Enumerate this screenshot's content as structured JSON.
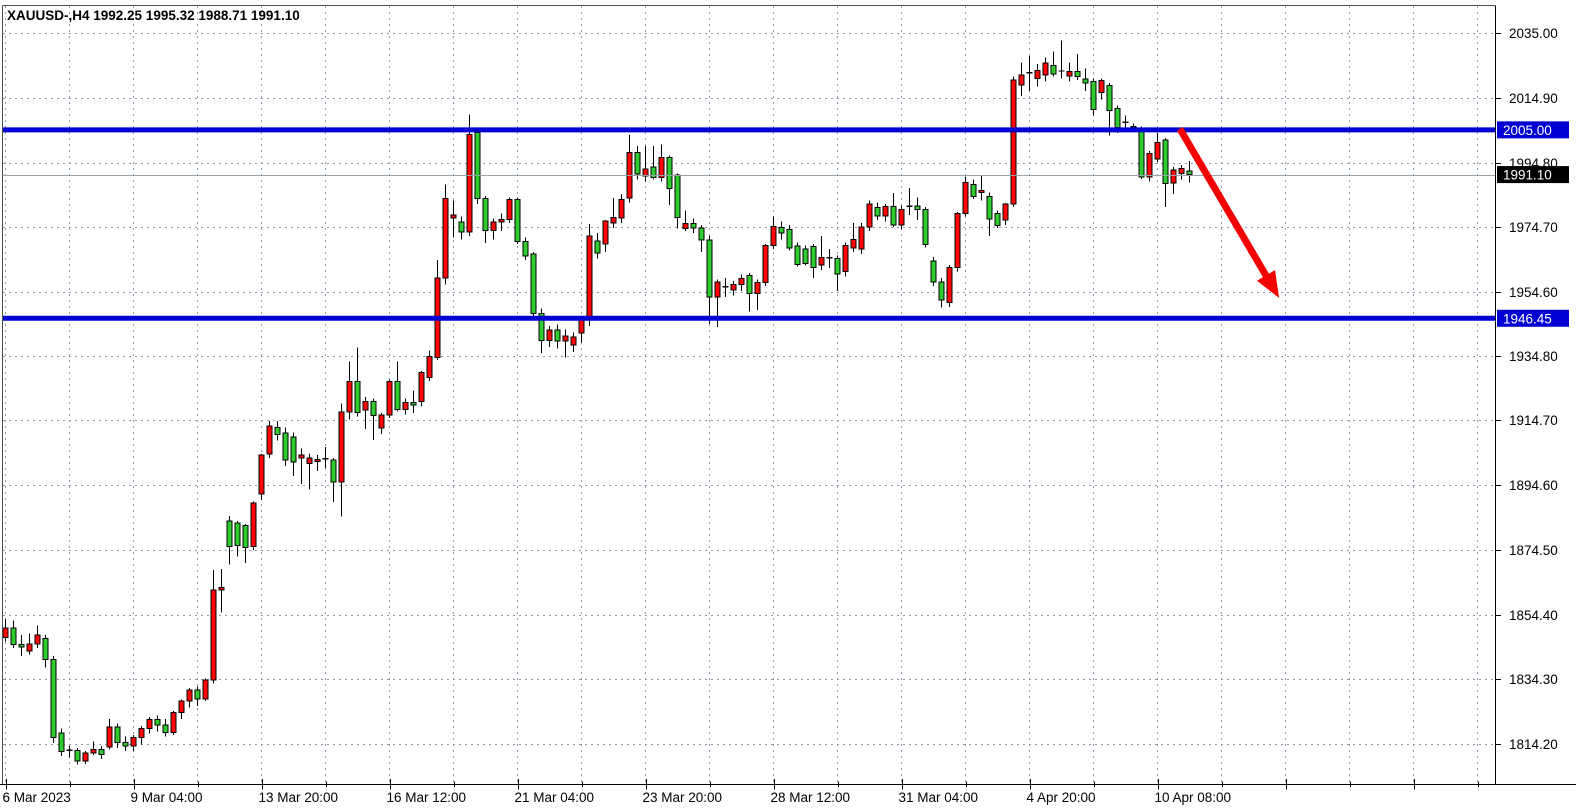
{
  "title": {
    "symbol_period": "XAUUSD-,H4",
    "open": "1992.25",
    "high": "1995.32",
    "low": "1988.71",
    "close": "1991.10"
  },
  "chart_data": {
    "type": "candlestick",
    "symbol": "XAUUSD-",
    "timeframe": "H4",
    "title": "XAUUSD-,H4 1992.25 1995.32 1988.71 1991.10",
    "x_labels": [
      "6 Mar 2023",
      "9 Mar 04:00",
      "13 Mar 20:00",
      "16 Mar 12:00",
      "21 Mar 04:00",
      "23 Mar 20:00",
      "28 Mar 12:00",
      "31 Mar 04:00",
      "4 Apr 20:00",
      "10 Apr 08:00"
    ],
    "y_axis_labels": [
      "2035.00",
      "2014.90",
      "1994.80",
      "1974.70",
      "1954.60",
      "1934.80",
      "1914.70",
      "1894.60",
      "1874.50",
      "1854.40",
      "1834.30",
      "1814.20"
    ],
    "ylim": [
      1805,
      2040
    ],
    "grid": true,
    "legend_position": "none",
    "note_color_scheme": "bullish candles red, bearish candles green",
    "ohlc": [
      [
        1847.3,
        1853.0,
        1846.0,
        1850.2
      ],
      [
        1850.2,
        1852.5,
        1844.0,
        1845.1
      ],
      [
        1845.1,
        1848.0,
        1841.5,
        1844.3
      ],
      [
        1843.0,
        1848.5,
        1842.0,
        1845.2
      ],
      [
        1845.2,
        1851.0,
        1844.0,
        1848.0
      ],
      [
        1847.0,
        1848.0,
        1838.0,
        1840.5
      ],
      [
        1840.5,
        1841.5,
        1814.5,
        1816.2
      ],
      [
        1817.6,
        1819.0,
        1810.5,
        1811.9
      ],
      [
        1811.9,
        1813.5,
        1810.0,
        1812.2
      ],
      [
        1812.2,
        1813.0,
        1807.8,
        1808.9
      ],
      [
        1808.9,
        1812.0,
        1808.0,
        1811.4
      ],
      [
        1811.4,
        1815.0,
        1810.8,
        1812.4
      ],
      [
        1812.4,
        1813.5,
        1809.5,
        1810.9
      ],
      [
        1813.2,
        1822.0,
        1812.5,
        1819.4
      ],
      [
        1819.4,
        1820.5,
        1813.0,
        1814.6
      ],
      [
        1814.6,
        1816.5,
        1812.0,
        1813.5
      ],
      [
        1813.5,
        1817.0,
        1812.0,
        1816.2
      ],
      [
        1816.2,
        1819.8,
        1814.0,
        1819.0
      ],
      [
        1819.0,
        1822.5,
        1817.5,
        1821.8
      ],
      [
        1821.8,
        1823.0,
        1818.0,
        1820.1
      ],
      [
        1820.1,
        1822.0,
        1816.5,
        1817.8
      ],
      [
        1817.8,
        1824.5,
        1817.0,
        1823.9
      ],
      [
        1823.9,
        1828.0,
        1822.0,
        1827.5
      ],
      [
        1827.5,
        1831.5,
        1825.5,
        1830.9
      ],
      [
        1830.9,
        1832.0,
        1826.0,
        1828.1
      ],
      [
        1828.1,
        1834.5,
        1827.5,
        1834.0
      ],
      [
        1834.0,
        1868.2,
        1833.0,
        1862.0
      ],
      [
        1862.0,
        1868.5,
        1855.0,
        1862.8
      ],
      [
        1883.5,
        1885.0,
        1870.0,
        1875.5
      ],
      [
        1882.8,
        1883.5,
        1872.5,
        1875.9
      ],
      [
        1882.0,
        1882.5,
        1870.4,
        1875.2
      ],
      [
        1875.5,
        1889.5,
        1874.5,
        1889.0
      ],
      [
        1891.8,
        1904.3,
        1890.0,
        1904.0
      ],
      [
        1904.3,
        1914.6,
        1903.0,
        1913.0
      ],
      [
        1912.5,
        1914.5,
        1908.5,
        1910.4
      ],
      [
        1910.8,
        1912.5,
        1900.5,
        1902.4
      ],
      [
        1909.5,
        1911.0,
        1897.5,
        1901.8
      ],
      [
        1903.0,
        1906.0,
        1895.0,
        1904.0
      ],
      [
        1901.3,
        1904.5,
        1893.3,
        1903.0
      ],
      [
        1902.0,
        1904.0,
        1899.0,
        1902.5
      ],
      [
        1902.5,
        1906.5,
        1900.0,
        1902.8
      ],
      [
        1902.4,
        1903.0,
        1889.4,
        1895.6
      ],
      [
        1895.6,
        1920.0,
        1884.8,
        1917.4
      ],
      [
        1917.4,
        1933.0,
        1915.0,
        1926.8
      ],
      [
        1926.8,
        1937.3,
        1916.0,
        1917.2
      ],
      [
        1918.0,
        1922.0,
        1912.0,
        1920.6
      ],
      [
        1920.6,
        1921.5,
        1908.7,
        1916.2
      ],
      [
        1912.3,
        1917.0,
        1910.5,
        1916.4
      ],
      [
        1916.4,
        1927.5,
        1915.5,
        1926.8
      ],
      [
        1926.8,
        1933.0,
        1917.5,
        1918.1
      ],
      [
        1918.1,
        1921.5,
        1916.5,
        1920.3
      ],
      [
        1920.3,
        1924.0,
        1917.0,
        1919.5
      ],
      [
        1920.6,
        1930.0,
        1919.0,
        1929.6
      ],
      [
        1928.0,
        1936.5,
        1927.0,
        1934.5
      ],
      [
        1934.3,
        1964.6,
        1933.5,
        1959.0
      ],
      [
        1959.0,
        1988.0,
        1957.0,
        1983.6
      ],
      [
        1977.6,
        1983.0,
        1971.5,
        1978.5
      ],
      [
        1976.3,
        1978.0,
        1971.0,
        1973.2
      ],
      [
        1973.2,
        2009.8,
        1972.0,
        2003.6
      ],
      [
        2004.2,
        2005.8,
        1982.0,
        1983.6
      ],
      [
        1983.6,
        1984.5,
        1969.8,
        1973.7
      ],
      [
        1973.7,
        1977.5,
        1971.0,
        1976.3
      ],
      [
        1976.3,
        1979.0,
        1973.5,
        1977.2
      ],
      [
        1977.2,
        1984.0,
        1976.0,
        1983.4
      ],
      [
        1983.4,
        1984.0,
        1969.5,
        1970.3
      ],
      [
        1970.3,
        1971.5,
        1964.5,
        1965.8
      ],
      [
        1966.4,
        1967.0,
        1947.0,
        1948.0
      ],
      [
        1948.0,
        1949.5,
        1935.6,
        1939.6
      ],
      [
        1939.6,
        1944.0,
        1937.5,
        1942.8
      ],
      [
        1942.8,
        1944.5,
        1937.0,
        1939.4
      ],
      [
        1939.4,
        1943.0,
        1934.3,
        1940.9
      ],
      [
        1938.2,
        1942.0,
        1936.0,
        1940.7
      ],
      [
        1941.8,
        1946.5,
        1939.0,
        1945.9
      ],
      [
        1945.9,
        1975.7,
        1944.0,
        1972.0
      ],
      [
        1970.4,
        1973.0,
        1965.0,
        1966.7
      ],
      [
        1969.5,
        1977.0,
        1967.0,
        1976.6
      ],
      [
        1976.0,
        1983.9,
        1974.5,
        1977.8
      ],
      [
        1977.6,
        1985.0,
        1976.0,
        1983.3
      ],
      [
        1983.9,
        2003.4,
        1982.5,
        1998.0
      ],
      [
        1998.0,
        2000.0,
        1989.5,
        1991.3
      ],
      [
        1990.6,
        2000.0,
        1989.0,
        1992.8
      ],
      [
        1993.4,
        2000.0,
        1989.5,
        1990.2
      ],
      [
        1990.2,
        2000.4,
        1989.0,
        1996.4
      ],
      [
        1996.4,
        1997.0,
        1981.6,
        1986.7
      ],
      [
        1991.0,
        1991.5,
        1974.3,
        1977.8
      ],
      [
        1974.3,
        1980.0,
        1973.5,
        1975.9
      ],
      [
        1975.9,
        1977.5,
        1973.0,
        1974.5
      ],
      [
        1974.5,
        1975.5,
        1967.0,
        1970.8
      ],
      [
        1970.8,
        1972.0,
        1944.7,
        1953.0
      ],
      [
        1953.0,
        1958.5,
        1943.8,
        1957.8
      ],
      [
        1956.0,
        1959.0,
        1953.0,
        1956.2
      ],
      [
        1955.2,
        1958.0,
        1953.5,
        1957.0
      ],
      [
        1957.0,
        1960.0,
        1955.0,
        1958.8
      ],
      [
        1959.8,
        1960.5,
        1948.5,
        1954.2
      ],
      [
        1954.2,
        1958.5,
        1949.0,
        1957.5
      ],
      [
        1957.5,
        1969.5,
        1956.5,
        1969.0
      ],
      [
        1969.0,
        1978.0,
        1968.0,
        1975.0
      ],
      [
        1974.6,
        1976.5,
        1971.0,
        1973.0
      ],
      [
        1974.0,
        1975.5,
        1967.5,
        1968.3
      ],
      [
        1968.9,
        1970.0,
        1962.5,
        1963.2
      ],
      [
        1968.0,
        1969.0,
        1962.8,
        1963.4
      ],
      [
        1968.7,
        1969.5,
        1959.0,
        1962.3
      ],
      [
        1963.0,
        1972.0,
        1961.5,
        1965.3
      ],
      [
        1965.3,
        1968.0,
        1962.0,
        1965.0
      ],
      [
        1965.0,
        1966.0,
        1955.0,
        1960.2
      ],
      [
        1961.0,
        1970.0,
        1959.5,
        1969.0
      ],
      [
        1968.3,
        1976.0,
        1967.0,
        1971.0
      ],
      [
        1968.0,
        1976.0,
        1966.5,
        1974.8
      ],
      [
        1974.8,
        1983.0,
        1973.5,
        1982.0
      ],
      [
        1980.9,
        1982.5,
        1977.0,
        1978.3
      ],
      [
        1978.3,
        1982.0,
        1976.5,
        1981.2
      ],
      [
        1981.2,
        1985.3,
        1974.8,
        1975.5
      ],
      [
        1975.5,
        1981.5,
        1974.0,
        1980.3
      ],
      [
        1980.9,
        1987.0,
        1978.5,
        1981.3
      ],
      [
        1981.3,
        1984.0,
        1977.0,
        1980.2
      ],
      [
        1980.2,
        1981.0,
        1968.5,
        1969.3
      ],
      [
        1964.3,
        1965.5,
        1956.5,
        1957.8
      ],
      [
        1957.8,
        1959.0,
        1949.8,
        1952.2
      ],
      [
        1951.3,
        1963.0,
        1950.0,
        1962.3
      ],
      [
        1962.3,
        1979.5,
        1961.0,
        1979.0
      ],
      [
        1979.0,
        1990.5,
        1978.0,
        1988.7
      ],
      [
        1988.0,
        1989.5,
        1983.5,
        1984.3
      ],
      [
        1985.5,
        1991.0,
        1983.0,
        1986.2
      ],
      [
        1984.3,
        1985.5,
        1972.0,
        1977.3
      ],
      [
        1979.0,
        1980.0,
        1974.5,
        1975.3
      ],
      [
        1977.0,
        1982.3,
        1975.5,
        1982.0
      ],
      [
        1982.0,
        2021.5,
        1981.0,
        2020.5
      ],
      [
        2019.0,
        2026.0,
        2015.5,
        2022.0
      ],
      [
        2022.3,
        2028.0,
        2017.0,
        2022.7
      ],
      [
        2021.0,
        2025.5,
        2018.5,
        2023.5
      ],
      [
        2022.0,
        2027.5,
        2020.0,
        2025.7
      ],
      [
        2025.0,
        2029.3,
        2021.5,
        2022.3
      ],
      [
        2023.0,
        2032.7,
        2021.0,
        2023.3
      ],
      [
        2021.8,
        2026.0,
        2020.0,
        2023.2
      ],
      [
        2023.2,
        2028.5,
        2020.5,
        2021.6
      ],
      [
        2020.8,
        2024.0,
        2017.0,
        2019.5
      ],
      [
        2020.0,
        2021.0,
        2009.5,
        2011.3
      ],
      [
        2016.6,
        2021.0,
        2014.5,
        2020.4
      ],
      [
        2018.8,
        2019.5,
        2003.3,
        2011.0
      ],
      [
        2011.6,
        2012.5,
        2004.0,
        2005.7
      ],
      [
        2007.3,
        2009.5,
        2005.0,
        2007.0
      ],
      [
        2006.0,
        2007.0,
        2004.5,
        2005.8
      ],
      [
        2005.0,
        2006.0,
        1989.8,
        1990.3
      ],
      [
        1990.3,
        1998.5,
        1989.0,
        1997.6
      ],
      [
        1996.0,
        2004.0,
        1995.0,
        2001.0
      ],
      [
        2001.8,
        2002.5,
        1981.0,
        1988.4
      ],
      [
        1988.5,
        1993.5,
        1985.0,
        1992.6
      ],
      [
        1991.5,
        1994.0,
        1989.5,
        1993.0
      ],
      [
        1992.25,
        1995.32,
        1988.71,
        1991.1
      ]
    ],
    "levels": [
      {
        "price": 2005.0,
        "label": "2005.00"
      },
      {
        "price": 1946.45,
        "label": "1946.45"
      }
    ],
    "current_price": {
      "value": 1991.1,
      "label": "1991.10"
    },
    "arrow": {
      "from_bar": 146.8,
      "from_price": 2005.3,
      "to_bar": 159.2,
      "to_price": 1952.8
    },
    "colors": {
      "bull": "#ff0505",
      "bear": "#2fcc2f",
      "wick": "#000000",
      "outline": "#000000",
      "grid": "#8c9aab",
      "level_line": "#0000d2",
      "level_badge_bg": "#0000d2",
      "current_line": "#98a2aa",
      "current_badge_bg": "#000000",
      "badge_text": "#ffffff",
      "axis_text": "#000000",
      "axis_line": "#000000",
      "frame": "#4d4d4d",
      "background": "#ffffff",
      "arrow": "#f50000"
    }
  }
}
